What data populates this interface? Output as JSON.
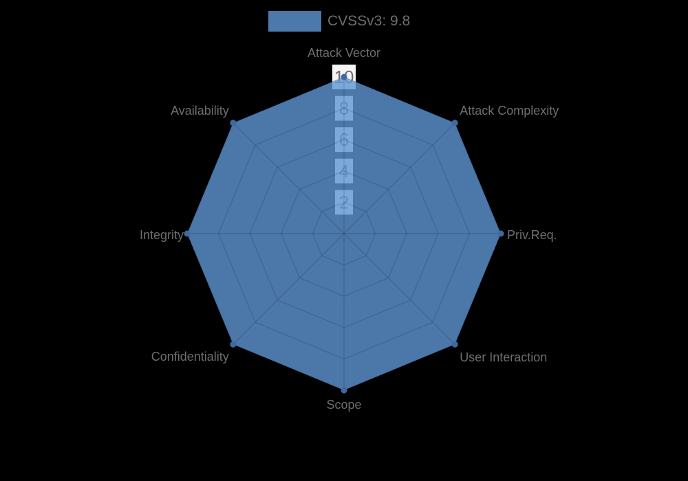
{
  "legend": {
    "label": "CVSSv3: 9.8",
    "position": "top",
    "swatch_color": "#4c78ab"
  },
  "chart_data": {
    "type": "radar",
    "title": "",
    "categories": [
      "Attack Vector",
      "Attack Complexity",
      "Priv.Req.",
      "User Interaction",
      "Scope",
      "Confidentiality",
      "Integrity",
      "Availability"
    ],
    "series": [
      {
        "name": "CVSSv3: 9.8",
        "values": [
          10,
          10,
          10,
          10,
          10,
          10,
          10,
          10
        ]
      }
    ],
    "rmin": 0,
    "rmax": 10,
    "ticks": [
      2,
      4,
      6,
      8,
      10
    ],
    "grid": "spiderweb",
    "legend_position": "top",
    "colors": {
      "background": "#000000",
      "fill": "rgba(94,149,211,0.8)",
      "fill_observed": "#4b77a9",
      "marker": "#3f6aa0",
      "grid_line": "rgba(0,0,0,0.13)",
      "tick_backdrop": "#f5f5f5",
      "tick_text": "#6e6e6e",
      "label_text": "#6e6e6e"
    }
  }
}
